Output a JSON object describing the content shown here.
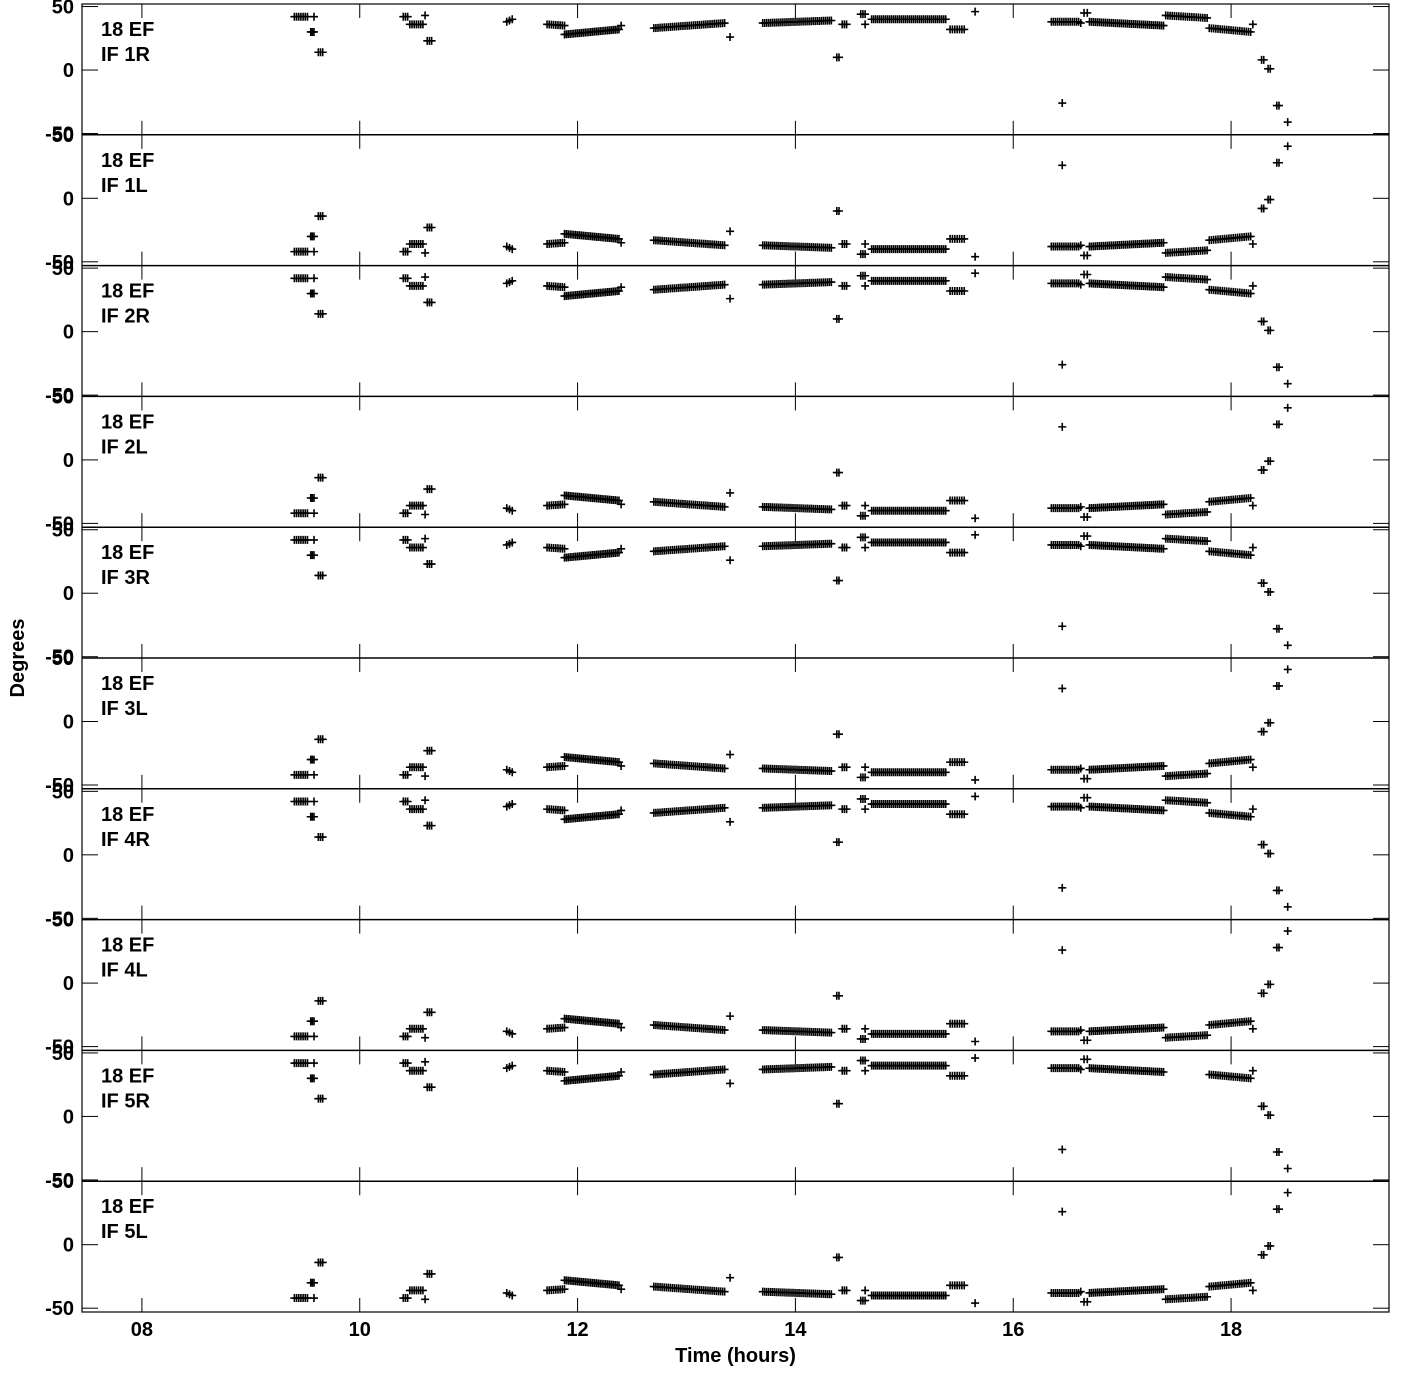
{
  "chart_data": {
    "type": "scatter",
    "xlabel": "Time (hours)",
    "ylabel": "Degrees",
    "xlim": [
      7.45,
      19.45
    ],
    "x_ticks": [
      8,
      10,
      12,
      14,
      16,
      18
    ],
    "x_tick_labels": [
      "08",
      "10",
      "12",
      "14",
      "16",
      "18"
    ],
    "ylim_R": [
      -51,
      52
    ],
    "ylim_L": [
      -53,
      50
    ],
    "y_ticks": [
      50,
      0,
      -50
    ],
    "y_tick_labels": [
      "50",
      "0",
      "-50"
    ],
    "marker": "plus",
    "color": "#000000",
    "panels": [
      {
        "line1": "18 EF",
        "line2": "IF 1R",
        "pol": "R",
        "variant": "full"
      },
      {
        "line1": "18 EF",
        "line2": "IF 1L",
        "pol": "L",
        "variant": "full"
      },
      {
        "line1": "18 EF",
        "line2": "IF 2R",
        "pol": "R",
        "variant": "full"
      },
      {
        "line1": "18 EF",
        "line2": "IF 2L",
        "pol": "L",
        "variant": "full"
      },
      {
        "line1": "18 EF",
        "line2": "IF 3R",
        "pol": "R",
        "variant": "full"
      },
      {
        "line1": "18 EF",
        "line2": "IF 3L",
        "pol": "L",
        "variant": "full"
      },
      {
        "line1": "18 EF",
        "line2": "IF 4R",
        "pol": "R",
        "variant": "full"
      },
      {
        "line1": "18 EF",
        "line2": "IF 4L",
        "pol": "L",
        "variant": "full"
      },
      {
        "line1": "18 EF",
        "line2": "IF 5R",
        "pol": "R",
        "variant": "noscan17_5"
      },
      {
        "line1": "18 EF",
        "line2": "IF 5L",
        "pol": "L",
        "variant": "full"
      }
    ],
    "segments_R": [
      {
        "x0": 9.4,
        "x1": 9.52,
        "y0": 42,
        "y1": 42,
        "n": 7
      },
      {
        "x0": 9.55,
        "x1": 9.58,
        "y0": 30,
        "y1": 30,
        "n": 3
      },
      {
        "x0": 9.58,
        "x1": 9.58,
        "y0": 42,
        "y1": 42,
        "n": 1
      },
      {
        "x0": 9.62,
        "x1": 9.66,
        "y0": 14,
        "y1": 14,
        "n": 3
      },
      {
        "x0": 10.4,
        "x1": 10.44,
        "y0": 42,
        "y1": 42,
        "n": 3
      },
      {
        "x0": 10.46,
        "x1": 10.58,
        "y0": 36,
        "y1": 36,
        "n": 7
      },
      {
        "x0": 10.6,
        "x1": 10.6,
        "y0": 43,
        "y1": 43,
        "n": 1
      },
      {
        "x0": 10.62,
        "x1": 10.66,
        "y0": 23,
        "y1": 23,
        "n": 3
      },
      {
        "x0": 11.35,
        "x1": 11.4,
        "y0": 38,
        "y1": 40,
        "n": 3
      },
      {
        "x0": 11.72,
        "x1": 11.88,
        "y0": 36,
        "y1": 35,
        "n": 9
      },
      {
        "x0": 11.88,
        "x1": 12.38,
        "y0": 28,
        "y1": 32,
        "n": 30
      },
      {
        "x0": 12.4,
        "x1": 12.4,
        "y0": 35,
        "y1": 35,
        "n": 1
      },
      {
        "x0": 12.7,
        "x1": 13.35,
        "y0": 33,
        "y1": 37,
        "n": 35
      },
      {
        "x0": 13.4,
        "x1": 13.4,
        "y0": 26,
        "y1": 26,
        "n": 1
      },
      {
        "x0": 13.7,
        "x1": 14.33,
        "y0": 37,
        "y1": 39,
        "n": 35
      },
      {
        "x0": 14.38,
        "x1": 14.4,
        "y0": 10,
        "y1": 10,
        "n": 2
      },
      {
        "x0": 14.43,
        "x1": 14.47,
        "y0": 36,
        "y1": 36,
        "n": 3
      },
      {
        "x0": 14.6,
        "x1": 14.64,
        "y0": 44,
        "y1": 44,
        "n": 3
      },
      {
        "x0": 14.64,
        "x1": 14.66,
        "y0": 36,
        "y1": 36,
        "n": 1
      },
      {
        "x0": 14.7,
        "x1": 15.38,
        "y0": 40,
        "y1": 40,
        "n": 38
      },
      {
        "x0": 15.42,
        "x1": 15.55,
        "y0": 32,
        "y1": 32,
        "n": 7
      },
      {
        "x0": 15.65,
        "x1": 15.65,
        "y0": 46,
        "y1": 46,
        "n": 1
      },
      {
        "x0": 16.35,
        "x1": 16.6,
        "y0": 38,
        "y1": 38,
        "n": 14
      },
      {
        "x0": 16.45,
        "x1": 16.45,
        "y0": -26,
        "y1": -26,
        "n": 1
      },
      {
        "x0": 16.62,
        "x1": 16.62,
        "y0": 37,
        "y1": 37,
        "n": 1
      },
      {
        "x0": 16.65,
        "x1": 16.68,
        "y0": 45,
        "y1": 45,
        "n": 2
      },
      {
        "x0": 16.7,
        "x1": 17.38,
        "y0": 38,
        "y1": 35,
        "n": 38,
        "scan": "17_5a"
      },
      {
        "x0": 17.4,
        "x1": 17.78,
        "y0": 43,
        "y1": 41,
        "n": 20,
        "scan": "17_5b"
      },
      {
        "x0": 17.8,
        "x1": 18.18,
        "y0": 33,
        "y1": 30,
        "n": 20
      },
      {
        "x0": 18.2,
        "x1": 18.2,
        "y0": 36,
        "y1": 36,
        "n": 1
      },
      {
        "x0": 18.28,
        "x1": 18.3,
        "y0": 8,
        "y1": 8,
        "n": 2
      },
      {
        "x0": 18.34,
        "x1": 18.36,
        "y0": 1,
        "y1": 1,
        "n": 2
      },
      {
        "x0": 18.42,
        "x1": 18.44,
        "y0": -28,
        "y1": -28,
        "n": 2
      },
      {
        "x0": 18.52,
        "x1": 18.52,
        "y0": -41,
        "y1": -41,
        "n": 1
      }
    ],
    "segments_L": [
      {
        "x0": 9.4,
        "x1": 9.52,
        "y0": -42,
        "y1": -42,
        "n": 7
      },
      {
        "x0": 9.55,
        "x1": 9.58,
        "y0": -30,
        "y1": -30,
        "n": 3
      },
      {
        "x0": 9.58,
        "x1": 9.58,
        "y0": -42,
        "y1": -42,
        "n": 1
      },
      {
        "x0": 9.62,
        "x1": 9.66,
        "y0": -14,
        "y1": -14,
        "n": 3
      },
      {
        "x0": 10.4,
        "x1": 10.44,
        "y0": -42,
        "y1": -42,
        "n": 3
      },
      {
        "x0": 10.46,
        "x1": 10.58,
        "y0": -36,
        "y1": -36,
        "n": 7
      },
      {
        "x0": 10.6,
        "x1": 10.6,
        "y0": -43,
        "y1": -43,
        "n": 1
      },
      {
        "x0": 10.62,
        "x1": 10.66,
        "y0": -23,
        "y1": -23,
        "n": 3
      },
      {
        "x0": 11.35,
        "x1": 11.4,
        "y0": -38,
        "y1": -40,
        "n": 3
      },
      {
        "x0": 11.72,
        "x1": 11.88,
        "y0": -36,
        "y1": -35,
        "n": 9
      },
      {
        "x0": 11.88,
        "x1": 12.38,
        "y0": -28,
        "y1": -32,
        "n": 30
      },
      {
        "x0": 12.4,
        "x1": 12.4,
        "y0": -35,
        "y1": -35,
        "n": 1
      },
      {
        "x0": 12.7,
        "x1": 13.35,
        "y0": -33,
        "y1": -37,
        "n": 35
      },
      {
        "x0": 13.4,
        "x1": 13.4,
        "y0": -26,
        "y1": -26,
        "n": 1
      },
      {
        "x0": 13.7,
        "x1": 14.33,
        "y0": -37,
        "y1": -39,
        "n": 35
      },
      {
        "x0": 14.38,
        "x1": 14.4,
        "y0": -10,
        "y1": -10,
        "n": 2
      },
      {
        "x0": 14.43,
        "x1": 14.47,
        "y0": -36,
        "y1": -36,
        "n": 3
      },
      {
        "x0": 14.6,
        "x1": 14.64,
        "y0": -44,
        "y1": -44,
        "n": 3
      },
      {
        "x0": 14.64,
        "x1": 14.66,
        "y0": -36,
        "y1": -36,
        "n": 1
      },
      {
        "x0": 14.7,
        "x1": 15.38,
        "y0": -40,
        "y1": -40,
        "n": 38
      },
      {
        "x0": 15.42,
        "x1": 15.55,
        "y0": -32,
        "y1": -32,
        "n": 7
      },
      {
        "x0": 15.65,
        "x1": 15.65,
        "y0": -46,
        "y1": -46,
        "n": 1
      },
      {
        "x0": 16.35,
        "x1": 16.6,
        "y0": -38,
        "y1": -38,
        "n": 14
      },
      {
        "x0": 16.45,
        "x1": 16.45,
        "y0": 26,
        "y1": 26,
        "n": 1
      },
      {
        "x0": 16.62,
        "x1": 16.62,
        "y0": -37,
        "y1": -37,
        "n": 1
      },
      {
        "x0": 16.65,
        "x1": 16.68,
        "y0": -45,
        "y1": -45,
        "n": 2
      },
      {
        "x0": 16.7,
        "x1": 17.38,
        "y0": -38,
        "y1": -35,
        "n": 38
      },
      {
        "x0": 17.4,
        "x1": 17.78,
        "y0": -43,
        "y1": -41,
        "n": 20
      },
      {
        "x0": 17.8,
        "x1": 18.18,
        "y0": -33,
        "y1": -30,
        "n": 20
      },
      {
        "x0": 18.2,
        "x1": 18.2,
        "y0": -36,
        "y1": -36,
        "n": 1
      },
      {
        "x0": 18.28,
        "x1": 18.3,
        "y0": -8,
        "y1": -8,
        "n": 2
      },
      {
        "x0": 18.34,
        "x1": 18.36,
        "y0": -1,
        "y1": -1,
        "n": 2
      },
      {
        "x0": 18.42,
        "x1": 18.44,
        "y0": 28,
        "y1": 28,
        "n": 2
      },
      {
        "x0": 18.52,
        "x1": 18.52,
        "y0": 41,
        "y1": 41,
        "n": 1
      }
    ]
  }
}
